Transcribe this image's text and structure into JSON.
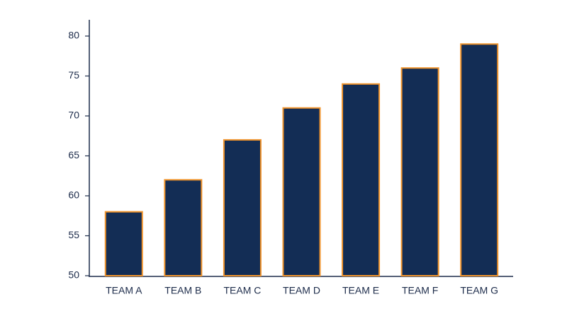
{
  "chart_data": {
    "type": "bar",
    "categories": [
      "TEAM A",
      "TEAM B",
      "TEAM C",
      "TEAM D",
      "TEAM E",
      "TEAM F",
      "TEAM G"
    ],
    "values": [
      58,
      62,
      67,
      71,
      74,
      76,
      79
    ],
    "color": "#132d55",
    "edgecolor": "#f0932b",
    "ylim": [
      50,
      82
    ],
    "yticks": [
      50,
      55,
      60,
      65,
      70,
      75,
      80
    ],
    "grid": false
  }
}
